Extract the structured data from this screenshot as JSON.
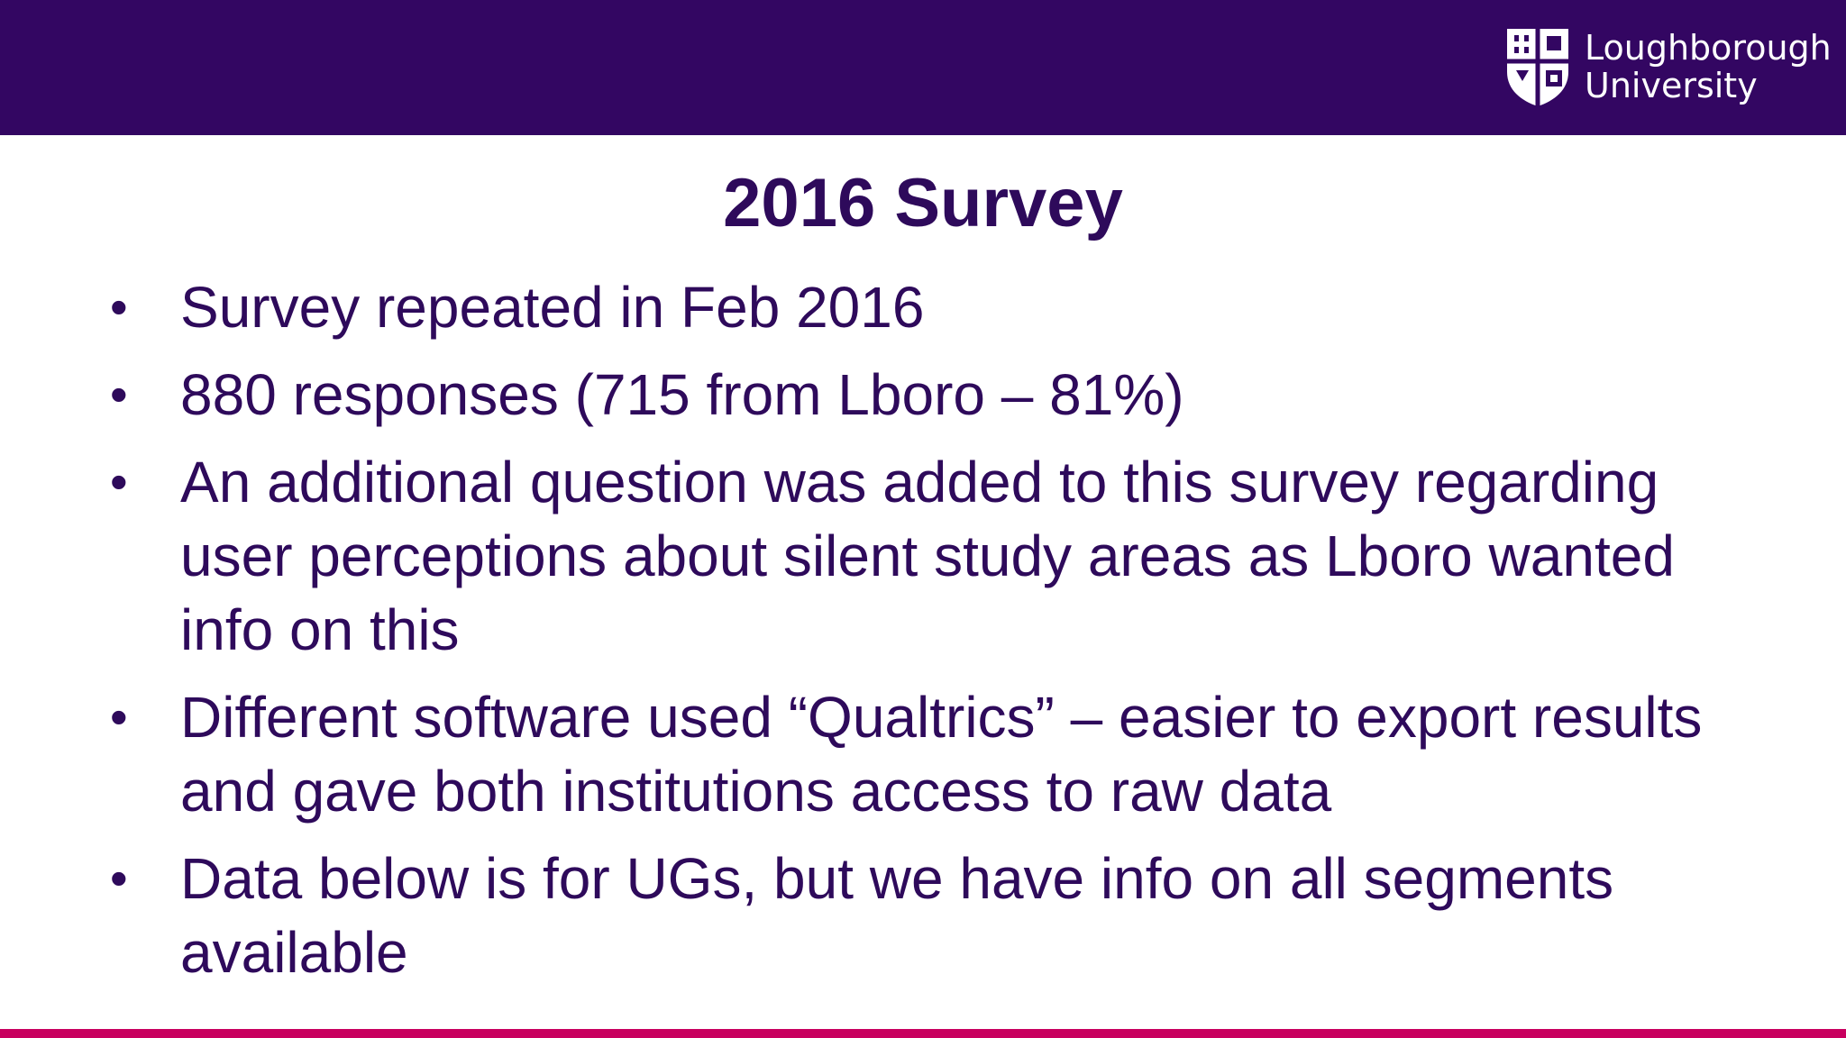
{
  "header": {
    "logo": {
      "line1": "Loughborough",
      "line2": "University",
      "icon": "university-shield-icon"
    }
  },
  "slide": {
    "title": "2016 Survey",
    "bullet_symbol": "•",
    "bullets": [
      "Survey repeated in Feb 2016",
      "880 responses (715 from Lboro – 81%)",
      "An additional question was added to this survey regarding user perceptions about silent study areas as Lboro wanted info on this",
      "Different software used “Qualtrics” – easier to export results and gave both institutions access to raw data",
      "Data below is for UGs, but we have info on all segments available"
    ]
  },
  "colors": {
    "header_background": "#330662",
    "text": "#2e0a5b",
    "footer_accent": "#c8005f",
    "background": "#ffffff"
  }
}
